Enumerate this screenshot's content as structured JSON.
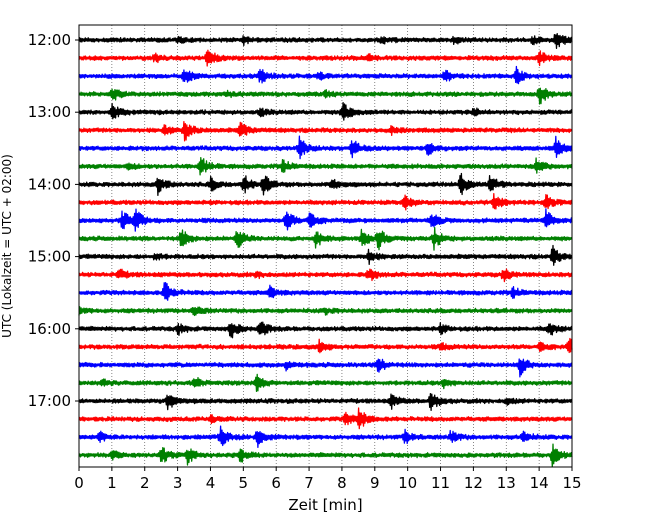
{
  "chart_data": {
    "type": "line",
    "title": "",
    "xlabel": "Zeit  [min]",
    "ylabel": "UTC (Lokalzeit = UTC + 02:00)",
    "xlim": [
      0,
      15
    ],
    "x_ticks": [
      "0",
      "1",
      "2",
      "3",
      "4",
      "5",
      "6",
      "7",
      "8",
      "9",
      "10",
      "11",
      "12",
      "13",
      "14",
      "15"
    ],
    "y_ticks": [
      "12:00",
      "13:00",
      "14:00",
      "15:00",
      "16:00",
      "17:00"
    ],
    "grid": "vertical dotted",
    "trace_colors": [
      "#000000",
      "#ff0000",
      "#0000ff",
      "#008000"
    ],
    "trace_count": 24,
    "trace_start_times": [
      "12:00",
      "12:15",
      "12:30",
      "12:45",
      "13:00",
      "13:15",
      "13:30",
      "13:45",
      "14:00",
      "14:15",
      "14:30",
      "14:45",
      "15:00",
      "15:15",
      "15:30",
      "15:45",
      "16:00",
      "16:15",
      "16:30",
      "16:45",
      "17:00",
      "17:15",
      "17:30",
      "17:45"
    ],
    "series": [
      {
        "start": "12:00",
        "events": [
          [
            14.5,
            1.0
          ],
          [
            5.0,
            0.35
          ],
          [
            9.2,
            0.3
          ],
          [
            11.4,
            0.3
          ],
          [
            13.8,
            0.3
          ],
          [
            3.0,
            0.25
          ]
        ]
      },
      {
        "start": "12:15",
        "events": [
          [
            3.9,
            0.9
          ],
          [
            14.0,
            0.6
          ],
          [
            2.3,
            0.35
          ],
          [
            8.8,
            0.3
          ]
        ]
      },
      {
        "start": "12:30",
        "events": [
          [
            3.2,
            0.75
          ],
          [
            5.5,
            0.75
          ],
          [
            11.1,
            0.6
          ],
          [
            13.3,
            0.75
          ],
          [
            7.3,
            0.3
          ]
        ]
      },
      {
        "start": "12:45",
        "events": [
          [
            1.0,
            0.75
          ],
          [
            14.0,
            1.0
          ],
          [
            7.5,
            0.3
          ],
          [
            4.5,
            0.25
          ]
        ]
      },
      {
        "start": "13:00",
        "events": [
          [
            1.0,
            0.7
          ],
          [
            8.0,
            1.0
          ],
          [
            5.5,
            0.3
          ],
          [
            12.0,
            0.3
          ]
        ]
      },
      {
        "start": "13:15",
        "events": [
          [
            3.2,
            1.0
          ],
          [
            4.9,
            0.8
          ],
          [
            2.6,
            0.4
          ],
          [
            9.5,
            0.3
          ]
        ]
      },
      {
        "start": "13:30",
        "events": [
          [
            6.7,
            1.0
          ],
          [
            8.3,
            0.9
          ],
          [
            10.6,
            0.6
          ],
          [
            14.5,
            1.0
          ]
        ]
      },
      {
        "start": "13:45",
        "events": [
          [
            3.7,
            0.9
          ],
          [
            6.2,
            0.7
          ],
          [
            13.9,
            0.7
          ],
          [
            1.5,
            0.3
          ]
        ]
      },
      {
        "start": "14:00",
        "events": [
          [
            2.4,
            0.9
          ],
          [
            4.0,
            0.6
          ],
          [
            5.0,
            0.9
          ],
          [
            5.6,
            0.9
          ],
          [
            7.7,
            0.5
          ],
          [
            11.6,
            1.0
          ],
          [
            12.5,
            0.8
          ]
        ]
      },
      {
        "start": "14:15",
        "events": [
          [
            9.9,
            0.7
          ],
          [
            12.6,
            0.9
          ],
          [
            14.2,
            0.6
          ]
        ]
      },
      {
        "start": "14:30",
        "events": [
          [
            1.3,
            1.0
          ],
          [
            1.7,
            1.0
          ],
          [
            6.3,
            1.0
          ],
          [
            7.0,
            0.9
          ],
          [
            10.7,
            0.8
          ],
          [
            14.2,
            1.0
          ]
        ]
      },
      {
        "start": "14:45",
        "events": [
          [
            3.1,
            1.0
          ],
          [
            4.8,
            0.9
          ],
          [
            7.2,
            0.8
          ],
          [
            8.6,
            0.9
          ],
          [
            9.1,
            1.0
          ],
          [
            10.8,
            0.9
          ]
        ]
      },
      {
        "start": "15:00",
        "events": [
          [
            14.4,
            0.9
          ],
          [
            8.8,
            0.6
          ],
          [
            2.3,
            0.3
          ]
        ]
      },
      {
        "start": "15:15",
        "events": [
          [
            1.2,
            0.5
          ],
          [
            8.8,
            0.6
          ],
          [
            12.9,
            0.6
          ],
          [
            5.4,
            0.25
          ]
        ]
      },
      {
        "start": "15:30",
        "events": [
          [
            2.6,
            1.0
          ],
          [
            5.8,
            0.55
          ],
          [
            13.2,
            0.6
          ]
        ]
      },
      {
        "start": "15:45",
        "events": [
          [
            3.5,
            0.5
          ],
          [
            0.0,
            0.3
          ],
          [
            7.5,
            0.25
          ]
        ]
      },
      {
        "start": "16:00",
        "events": [
          [
            4.6,
            0.9
          ],
          [
            5.5,
            0.8
          ],
          [
            3.0,
            0.5
          ],
          [
            14.3,
            0.6
          ],
          [
            11.0,
            0.4
          ]
        ]
      },
      {
        "start": "16:15",
        "events": [
          [
            14.9,
            0.9
          ],
          [
            7.3,
            0.6
          ],
          [
            14.0,
            0.5
          ],
          [
            11.0,
            0.3
          ]
        ]
      },
      {
        "start": "16:30",
        "events": [
          [
            13.4,
            1.0
          ],
          [
            9.1,
            0.7
          ],
          [
            6.3,
            0.4
          ]
        ]
      },
      {
        "start": "16:45",
        "events": [
          [
            5.4,
            0.7
          ],
          [
            3.5,
            0.55
          ],
          [
            11.1,
            0.4
          ],
          [
            0.7,
            0.3
          ]
        ]
      },
      {
        "start": "17:00",
        "events": [
          [
            2.7,
            0.8
          ],
          [
            9.5,
            0.6
          ],
          [
            10.7,
            0.9
          ],
          [
            13.0,
            0.3
          ]
        ]
      },
      {
        "start": "17:15",
        "events": [
          [
            8.1,
            0.6
          ],
          [
            8.5,
            1.0
          ],
          [
            4.0,
            0.3
          ]
        ]
      },
      {
        "start": "17:30",
        "events": [
          [
            4.3,
            0.9
          ],
          [
            5.4,
            1.0
          ],
          [
            0.6,
            0.5
          ],
          [
            9.9,
            0.6
          ],
          [
            11.3,
            0.6
          ],
          [
            13.5,
            0.5
          ]
        ]
      },
      {
        "start": "17:45",
        "events": [
          [
            2.5,
            0.8
          ],
          [
            3.3,
            0.8
          ],
          [
            4.9,
            0.6
          ],
          [
            14.4,
            1.0
          ],
          [
            1.0,
            0.4
          ]
        ]
      }
    ]
  }
}
